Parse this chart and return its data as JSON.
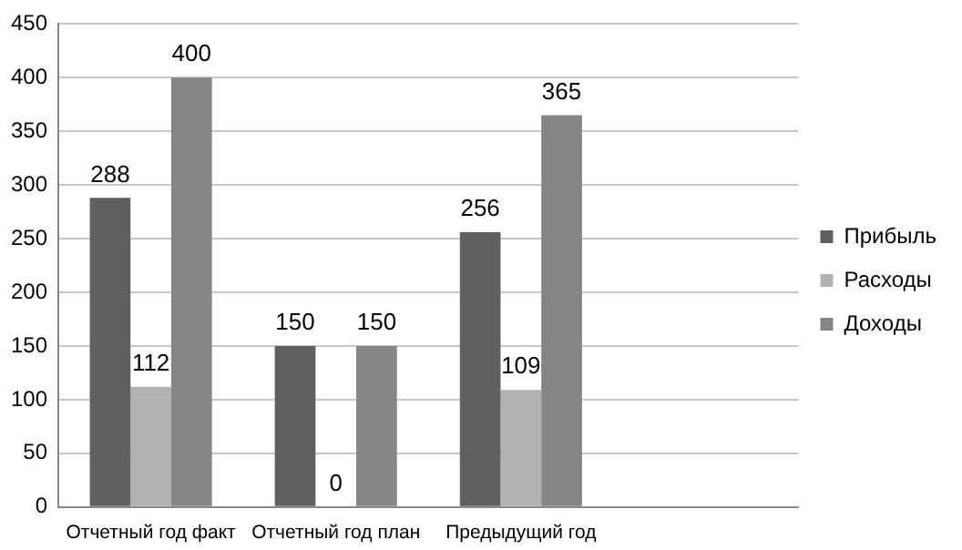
{
  "chart_data": {
    "type": "bar",
    "categories": [
      "Отчетный год факт",
      "Отчетный год план",
      "Предыдущий год",
      null
    ],
    "series": [
      {
        "name": "Прибыль",
        "color": "#606060",
        "values": [
          288,
          150,
          256,
          null
        ]
      },
      {
        "name": "Расходы",
        "color": "#b2b2b2",
        "values": [
          112,
          0,
          109,
          null
        ]
      },
      {
        "name": "Доходы",
        "color": "#858585",
        "values": [
          400,
          150,
          365,
          null
        ]
      }
    ],
    "ylim": [
      0,
      450
    ],
    "yticks": [
      0,
      50,
      100,
      150,
      200,
      250,
      300,
      350,
      400,
      450
    ],
    "grid": "y",
    "legend": "right",
    "data_labels": true
  }
}
